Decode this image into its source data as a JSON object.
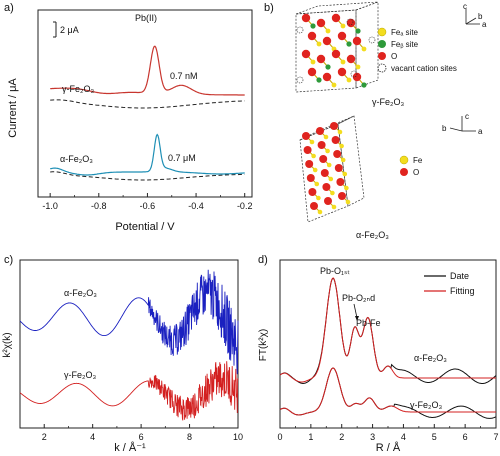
{
  "panels": {
    "a": {
      "label": "a)",
      "xlabel": "Potential / V",
      "ylabel": "Current / μA",
      "scale_bar": "2 μA",
      "peak_label": "Pb(II)",
      "xticks": [
        "-1.0",
        "-0.8",
        "-0.6",
        "-0.4",
        "-0.2"
      ],
      "gamma": {
        "label": "γ-Fe₂O₃",
        "conc": "0.7 nM",
        "color": "#c8362f"
      },
      "alpha": {
        "label": "α-Fe₂O₃",
        "conc": "0.7 μM",
        "color": "#1e8fb5"
      }
    },
    "b": {
      "label": "b)",
      "gamma_label": "γ-Fe₂O₃",
      "alpha_label": "α-Fe₂O₃",
      "legend_gamma": [
        "Feₐ site",
        "Feᵦ site",
        "O",
        "vacant cation sites"
      ],
      "legend_alpha": [
        "Fe",
        "O"
      ],
      "axes": {
        "a": "a",
        "b": "b",
        "c": "c"
      },
      "colors": {
        "fe": "#f3dd1f",
        "feb": "#2e9a3a",
        "o": "#e0241f"
      }
    },
    "c": {
      "label": "c)",
      "xlabel": "k / Å⁻¹",
      "ylabel": "k²χ(k)",
      "xticks": [
        "2",
        "4",
        "6",
        "8",
        "10"
      ],
      "alpha_label": "α-Fe₂O₃",
      "gamma_label": "γ-Fe₂O₃",
      "colors": {
        "alpha": "#1a20c0",
        "gamma": "#d32020"
      }
    },
    "d": {
      "label": "d)",
      "xlabel": "R / Å",
      "ylabel": "FT(k²χ)",
      "xticks": [
        "0",
        "1",
        "2",
        "3",
        "4",
        "5",
        "6",
        "7"
      ],
      "legend": [
        "Date",
        "Fitting"
      ],
      "annotations": [
        "Pb-O₁ₛₜ",
        "Pb-O₂ₙd",
        "Pb-Fe"
      ],
      "alpha_label": "α-Fe₂O₃",
      "gamma_label": "γ-Fe₂O₃",
      "colors": {
        "date": "#111111",
        "fitting": "#d32020"
      }
    }
  },
  "chart_data": [
    {
      "type": "line",
      "xlabel": "Potential / V",
      "ylabel": "Current / μA",
      "xlim": [
        -1.05,
        -0.17
      ],
      "series": [
        {
          "name": "γ-Fe₂O₃",
          "peak_x": -0.57
        },
        {
          "name": "α-Fe₂O₃",
          "peak_x": -0.56
        }
      ]
    },
    {
      "type": "line",
      "xlabel": "k / Å⁻¹",
      "ylabel": "k²χ(k)",
      "xlim": [
        1,
        10
      ],
      "series": [
        {
          "name": "α-Fe₂O₃"
        },
        {
          "name": "γ-Fe₂O₃"
        }
      ]
    },
    {
      "type": "line",
      "xlabel": "R / Å",
      "ylabel": "FT(k²χ)",
      "xlim": [
        0,
        7
      ],
      "series": [
        {
          "name": "Date"
        },
        {
          "name": "Fitting"
        }
      ],
      "peaks_x": [
        1.75,
        2.4,
        2.85
      ]
    }
  ]
}
